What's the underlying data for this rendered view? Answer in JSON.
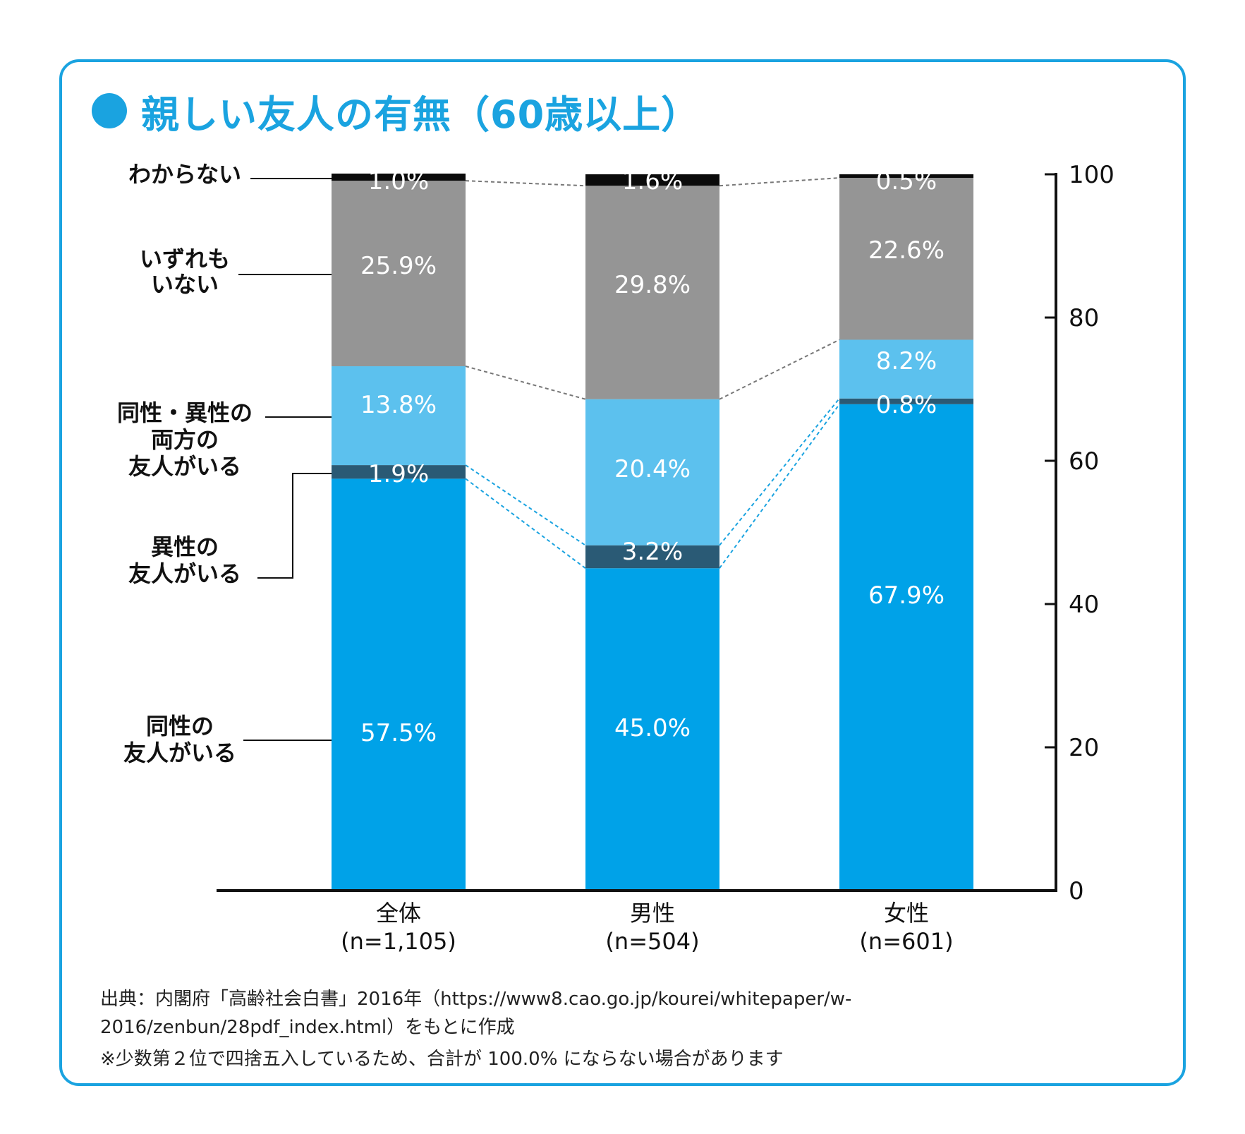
{
  "title": "親しい友人の有無（60歳以上）",
  "source": "出典：内閣府「高齢社会白書」2016年（https://www8.cao.go.jp/kourei/whitepaper/w-2016/zenbun/28pdf_index.html）をもとに作成",
  "note": "※少数第２位で四捨五入しているため、合計が 100.0% にならない場合があります",
  "colors": {
    "frame": "#1aa3e0",
    "same_sex": "#00a2e8",
    "opposite_sex": "#2a5a75",
    "both": "#5cc1ee",
    "none": "#959595",
    "unknown": "#0b0b0b"
  },
  "chart_data": {
    "type": "bar",
    "stacked": true,
    "categories": [
      {
        "name": "全体",
        "n": "(n=1,105)"
      },
      {
        "name": "男性",
        "n": "(n=504)"
      },
      {
        "name": "女性",
        "n": "(n=601)"
      }
    ],
    "series": [
      {
        "name": "同性の友人がいる",
        "legend_lines": [
          "同性の",
          "友人がいる"
        ],
        "values": [
          57.5,
          45.0,
          67.9
        ],
        "labels": [
          "57.5%",
          "45.0%",
          "67.9%"
        ],
        "color": "#00a2e8"
      },
      {
        "name": "異性の友人がいる",
        "legend_lines": [
          "異性の",
          "友人がいる"
        ],
        "values": [
          1.9,
          3.2,
          0.8
        ],
        "labels": [
          "1.9%",
          "3.2%",
          "0.8%"
        ],
        "color": "#2a5a75"
      },
      {
        "name": "同性・異性の両方の友人がいる",
        "legend_lines": [
          "同性・異性の",
          "両方の",
          "友人がいる"
        ],
        "values": [
          13.8,
          20.4,
          8.2
        ],
        "labels": [
          "13.8%",
          "20.4%",
          "8.2%"
        ],
        "color": "#5cc1ee"
      },
      {
        "name": "いずれもいない",
        "legend_lines": [
          "いずれも",
          "いない"
        ],
        "values": [
          25.9,
          29.8,
          22.6
        ],
        "labels": [
          "25.9%",
          "29.8%",
          "22.6%"
        ],
        "color": "#959595"
      },
      {
        "name": "わからない",
        "legend_lines": [
          "わからない"
        ],
        "values": [
          1.0,
          1.6,
          0.5
        ],
        "labels": [
          "1.0%",
          "1.6%",
          "0.5%"
        ],
        "color": "#0b0b0b"
      }
    ],
    "yaxis": {
      "position": "right",
      "ticks": [
        "0",
        "20",
        "40",
        "60",
        "80",
        "100"
      ],
      "range": [
        0,
        100
      ]
    },
    "legend": "left",
    "grid": false
  }
}
